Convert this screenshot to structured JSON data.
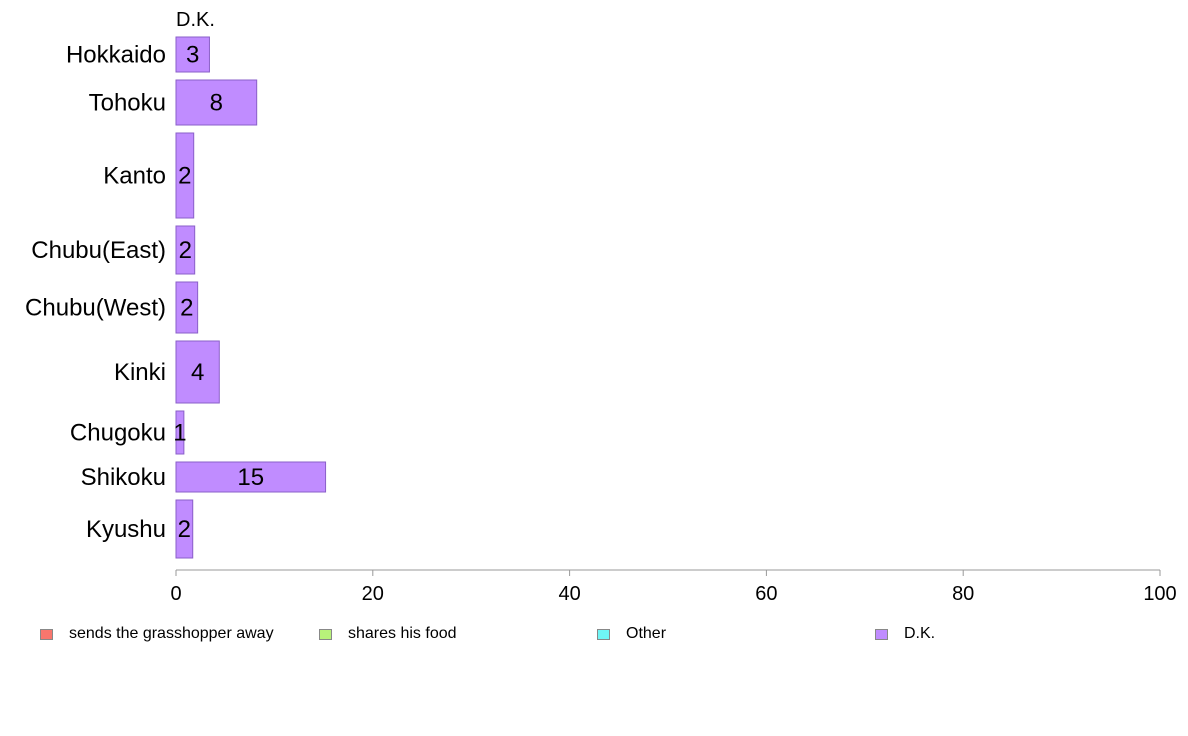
{
  "chart_data": {
    "type": "bar",
    "orientation": "horizontal",
    "stacked": true,
    "header_label": "D.K.",
    "categories": [
      "Hokkaido",
      "Tohoku",
      "Kanto",
      "Chubu(East)",
      "Chubu(West)",
      "Kinki",
      "Chugoku",
      "Shikoku",
      "Kyushu"
    ],
    "series": [
      {
        "name": "sends the grasshopper away",
        "color": "#f8766d",
        "values": [
          0,
          0,
          0,
          0,
          0,
          0,
          0,
          0,
          0
        ]
      },
      {
        "name": "shares his food",
        "color": "#b8f27a",
        "values": [
          0,
          0,
          0,
          0,
          0,
          0,
          0,
          0,
          0
        ]
      },
      {
        "name": "Other",
        "color": "#6ff5f5",
        "values": [
          0,
          0,
          0,
          0,
          0,
          0,
          0,
          0,
          0
        ]
      },
      {
        "name": "D.K.",
        "color": "#c08cff",
        "values": [
          3.4,
          8.2,
          1.8,
          1.9,
          2.2,
          4.4,
          0.8,
          15.2,
          1.7
        ]
      }
    ],
    "data_labels": [
      "3",
      "8",
      "2",
      "2",
      "2",
      "4",
      "1",
      "15",
      "2"
    ],
    "xlim": [
      0,
      100
    ],
    "x_ticks": [
      "0",
      "20",
      "40",
      "60",
      "80",
      "100"
    ],
    "grid": false,
    "legend_position": "bottom"
  }
}
